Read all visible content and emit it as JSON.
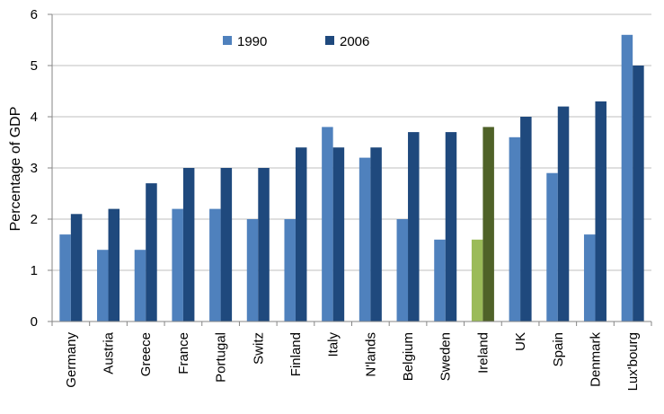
{
  "chart_data": {
    "type": "bar",
    "title": "",
    "xlabel": "",
    "ylabel": "Percentage of GDP",
    "ylim": [
      0,
      6
    ],
    "yticks": [
      0,
      1,
      2,
      3,
      4,
      5,
      6
    ],
    "grid": "horizontal",
    "legend_position": "top-left",
    "categories": [
      "Germany",
      "Austria",
      "Greece",
      "France",
      "Portugal",
      "Switz",
      "Finland",
      "Italy",
      "N'lands",
      "Belgium",
      "Sweden",
      "Ireland",
      "UK",
      "Spain",
      "Denmark",
      "Lux'bourg"
    ],
    "series": [
      {
        "name": "1990",
        "color": "#4f81bd",
        "values": [
          1.7,
          1.4,
          1.4,
          2.2,
          2.2,
          2.0,
          2.0,
          3.8,
          3.2,
          2.0,
          1.6,
          1.6,
          3.6,
          2.9,
          1.7,
          5.6
        ]
      },
      {
        "name": "2006",
        "color": "#1f497d",
        "values": [
          2.1,
          2.2,
          2.7,
          3.0,
          3.0,
          3.0,
          3.4,
          3.4,
          3.4,
          3.7,
          3.7,
          3.8,
          4.0,
          4.2,
          4.3,
          5.0
        ]
      }
    ],
    "highlight": {
      "category": "Ireland",
      "colors": {
        "1990": "#9bbb59",
        "2006": "#4f6228"
      }
    }
  }
}
